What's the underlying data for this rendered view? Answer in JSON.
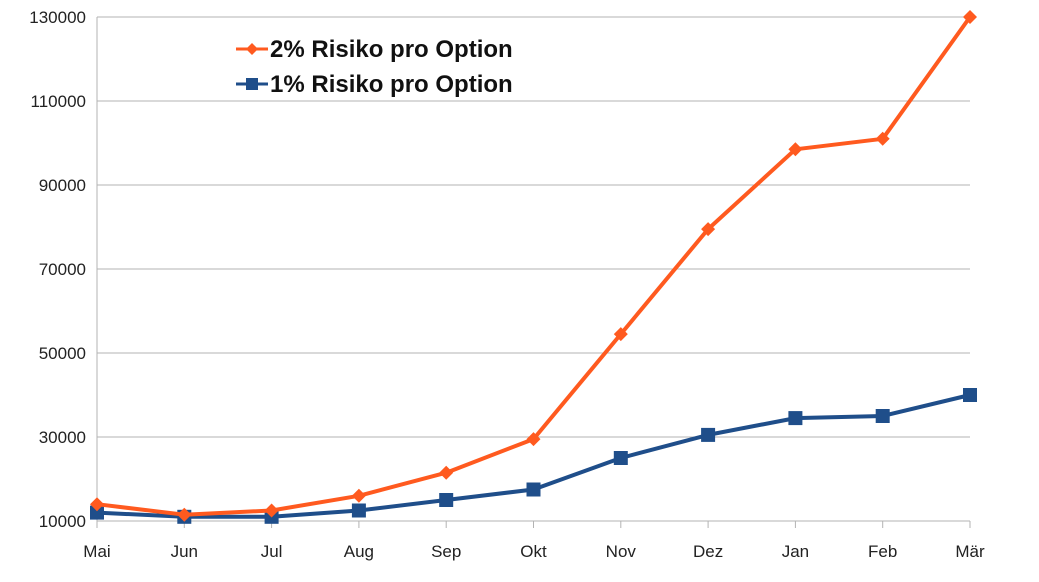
{
  "chart_data": {
    "type": "line",
    "categories": [
      "Mai",
      "Jun",
      "Jul",
      "Aug",
      "Sep",
      "Okt",
      "Nov",
      "Dez",
      "Jan",
      "Feb",
      "Mär"
    ],
    "series": [
      {
        "name": "2% Risiko pro Option",
        "color": "#ff5a1f",
        "marker": "diamond",
        "values": [
          14000,
          11500,
          12500,
          16000,
          21500,
          29500,
          54500,
          79500,
          98500,
          101000,
          130000
        ]
      },
      {
        "name": "1% Risiko pro Option",
        "color": "#1f4e8a",
        "marker": "square",
        "values": [
          12000,
          11000,
          11000,
          12500,
          15000,
          17500,
          25000,
          30500,
          34500,
          35000,
          40000
        ]
      }
    ],
    "yticks": [
      "10000",
      "30000",
      "50000",
      "70000",
      "90000",
      "110000",
      "130000"
    ],
    "ylim": [
      10000,
      130000
    ],
    "grid": "horizontal",
    "legend_position": "top-left"
  }
}
